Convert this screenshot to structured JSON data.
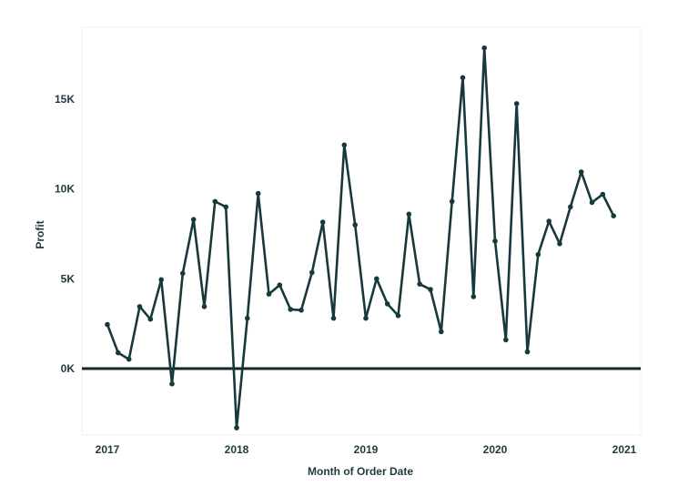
{
  "colors": {
    "line": "#17393c",
    "text": "#1f3a3d",
    "plot_bg": "#ffffff",
    "frame": "#f2f2f2",
    "zero_line": "#0e2a2d"
  },
  "chart_data": {
    "type": "line",
    "title": "",
    "xlabel": "Month of Order Date",
    "ylabel": "Profit",
    "x_ticks": [
      "2017",
      "2018",
      "2019",
      "2020",
      "2021"
    ],
    "y_ticks": [
      "0K",
      "5K",
      "10K",
      "15K"
    ],
    "y_tick_values": [
      0,
      5000,
      10000,
      15000
    ],
    "ylim": [
      -3700,
      19000
    ],
    "xlim": [
      "2017-01",
      "2021-01"
    ],
    "grid": false,
    "series": [
      {
        "x": [
          "2017-01",
          "2017-02",
          "2017-03",
          "2017-04",
          "2017-05",
          "2017-06",
          "2017-07",
          "2017-08",
          "2017-09",
          "2017-10",
          "2017-11",
          "2017-12",
          "2018-01",
          "2018-02",
          "2018-03",
          "2018-04",
          "2018-05",
          "2018-06",
          "2018-07",
          "2018-08",
          "2018-09",
          "2018-10",
          "2018-11",
          "2018-12",
          "2019-01",
          "2019-02",
          "2019-03",
          "2019-04",
          "2019-05",
          "2019-06",
          "2019-07",
          "2019-08",
          "2019-09",
          "2019-10",
          "2019-11",
          "2019-12",
          "2020-01",
          "2020-02",
          "2020-03",
          "2020-04",
          "2020-05",
          "2020-06",
          "2020-07",
          "2020-08",
          "2020-09",
          "2020-10",
          "2020-11",
          "2020-12"
        ],
        "values": [
          2450,
          880,
          520,
          3450,
          2750,
          4950,
          -850,
          5300,
          8300,
          3450,
          9300,
          9000,
          -3300,
          2800,
          9750,
          4150,
          4650,
          3300,
          3250,
          5350,
          8150,
          2800,
          12450,
          8000,
          2800,
          5000,
          3600,
          2950,
          8600,
          4700,
          4400,
          2050,
          9300,
          16200,
          4000,
          17850,
          7100,
          1600,
          14750,
          930,
          6350,
          8200,
          6950,
          9000,
          10950,
          9250,
          9700,
          8500
        ]
      }
    ]
  }
}
